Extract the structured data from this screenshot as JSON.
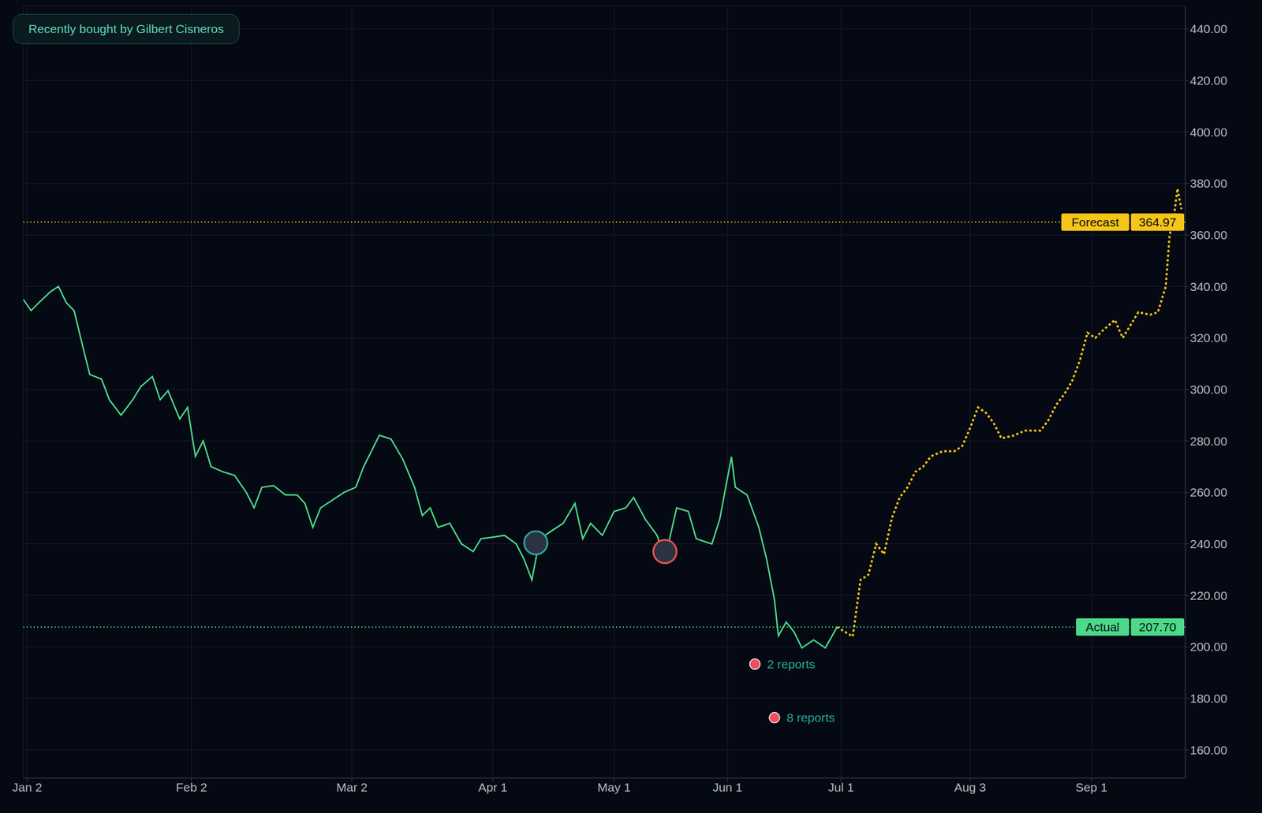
{
  "chart_data": {
    "type": "line",
    "badge": "Recently bought by Gilbert Cisneros",
    "series": [
      {
        "name": "Actual",
        "color": "#4cd98a",
        "line_style": "solid",
        "x": [
          -1,
          1,
          3,
          6,
          8,
          10,
          12,
          14,
          16,
          19,
          21,
          24,
          27,
          29,
          32,
          34,
          36,
          39,
          41,
          43,
          45,
          47,
          50,
          53,
          56,
          58,
          60,
          63,
          66,
          69,
          71,
          73,
          75,
          78,
          81,
          84,
          86,
          88,
          90,
          93,
          96,
          99,
          101,
          103,
          105,
          108,
          111,
          114,
          116,
          119,
          122,
          125,
          127,
          129,
          131,
          134,
          137,
          140,
          142,
          144,
          147,
          150,
          153,
          155,
          158,
          161,
          163,
          166,
          169,
          171,
          175,
          177,
          180,
          181,
          184,
          187,
          189,
          191,
          192,
          194,
          196,
          198,
          201,
          204,
          207
        ],
        "values": [
          335,
          330.6,
          333.7,
          338,
          340,
          333.7,
          330.6,
          318,
          305.8,
          304,
          296,
          290,
          296,
          301,
          305,
          296,
          299.5,
          288.5,
          293,
          274,
          280,
          270,
          268,
          266.6,
          260,
          254,
          262,
          262.6,
          259,
          259,
          255.7,
          246.4,
          254,
          257,
          260,
          262,
          270,
          276,
          282.2,
          280.7,
          272.9,
          262,
          251,
          254,
          246.4,
          248,
          240,
          237,
          242,
          242.6,
          243.3,
          240,
          234,
          226,
          242,
          245,
          248,
          255.7,
          242,
          248,
          243.3,
          252.6,
          254,
          258,
          249.5,
          243.3,
          234,
          254,
          252.6,
          242,
          240,
          249.5,
          273.8,
          262,
          259,
          246.4,
          234,
          218.3,
          204.3,
          209.6,
          205.8,
          199.6,
          202.7,
          199.6,
          207.7
        ]
      },
      {
        "name": "Forecast",
        "color": "#f5c518",
        "line_style": "dotted",
        "x": [
          207,
          211,
          213,
          215,
          217,
          219,
          221,
          223,
          225,
          227,
          229,
          231,
          234,
          237,
          239,
          241,
          243,
          245,
          247,
          249,
          252,
          255,
          259,
          261,
          263,
          265,
          267,
          269,
          271,
          273,
          275,
          278,
          280,
          282,
          284,
          287,
          289,
          291,
          292,
          293,
          294,
          295
        ],
        "values": [
          207.7,
          204,
          226,
          228,
          240,
          236,
          250,
          258,
          262,
          268,
          270,
          274,
          276,
          276,
          278,
          285,
          293,
          291,
          287,
          281,
          282,
          284,
          284,
          288,
          294,
          298,
          303,
          311,
          322,
          320,
          323,
          327,
          320,
          325,
          330,
          329,
          330,
          340,
          360,
          366,
          378,
          370
        ]
      }
    ],
    "reference_lines": [
      {
        "text": "Forecast",
        "value": 364.97,
        "value_label": "364.97",
        "color": "#f5c518"
      },
      {
        "text": "Actual",
        "value": 207.7,
        "value_label": "207.70",
        "color": "#4cd98a"
      }
    ],
    "annotations": [
      {
        "text": "2 reports",
        "x": 186,
        "value": 193.3
      },
      {
        "text": "8 reports",
        "x": 191,
        "value": 172.5
      }
    ],
    "trades": [
      {
        "x": 130,
        "value": 240.4,
        "color": "#26a69a"
      },
      {
        "x": 163,
        "value": 237,
        "color": "#ef5350"
      }
    ],
    "xlim": [
      -1,
      296
    ],
    "xticks": [
      {
        "value": 0,
        "label": "Jan 2"
      },
      {
        "value": 42,
        "label": "Feb 2"
      },
      {
        "value": 83,
        "label": "Mar 2"
      },
      {
        "value": 119,
        "label": "Apr 1"
      },
      {
        "value": 150,
        "label": "May 1"
      },
      {
        "value": 179,
        "label": "Jun 1"
      },
      {
        "value": 208,
        "label": "Jul 1"
      },
      {
        "value": 241,
        "label": "Aug 3"
      },
      {
        "value": 272,
        "label": "Sep 1"
      }
    ],
    "ylim": [
      149,
      449
    ],
    "yticks": [
      {
        "value": 160,
        "label": "160.00"
      },
      {
        "value": 180,
        "label": "180.00"
      },
      {
        "value": 200,
        "label": "200.00"
      },
      {
        "value": 220,
        "label": "220.00"
      },
      {
        "value": 240,
        "label": "240.00"
      },
      {
        "value": 260,
        "label": "260.00"
      },
      {
        "value": 280,
        "label": "280.00"
      },
      {
        "value": 300,
        "label": "300.00"
      },
      {
        "value": 320,
        "label": "320.00"
      },
      {
        "value": 340,
        "label": "340.00"
      },
      {
        "value": 360,
        "label": "360.00"
      },
      {
        "value": 380,
        "label": "380.00"
      },
      {
        "value": 400,
        "label": "400.00"
      },
      {
        "value": 420,
        "label": "420.00"
      },
      {
        "value": 440,
        "label": "440.00"
      }
    ],
    "grid": true
  }
}
